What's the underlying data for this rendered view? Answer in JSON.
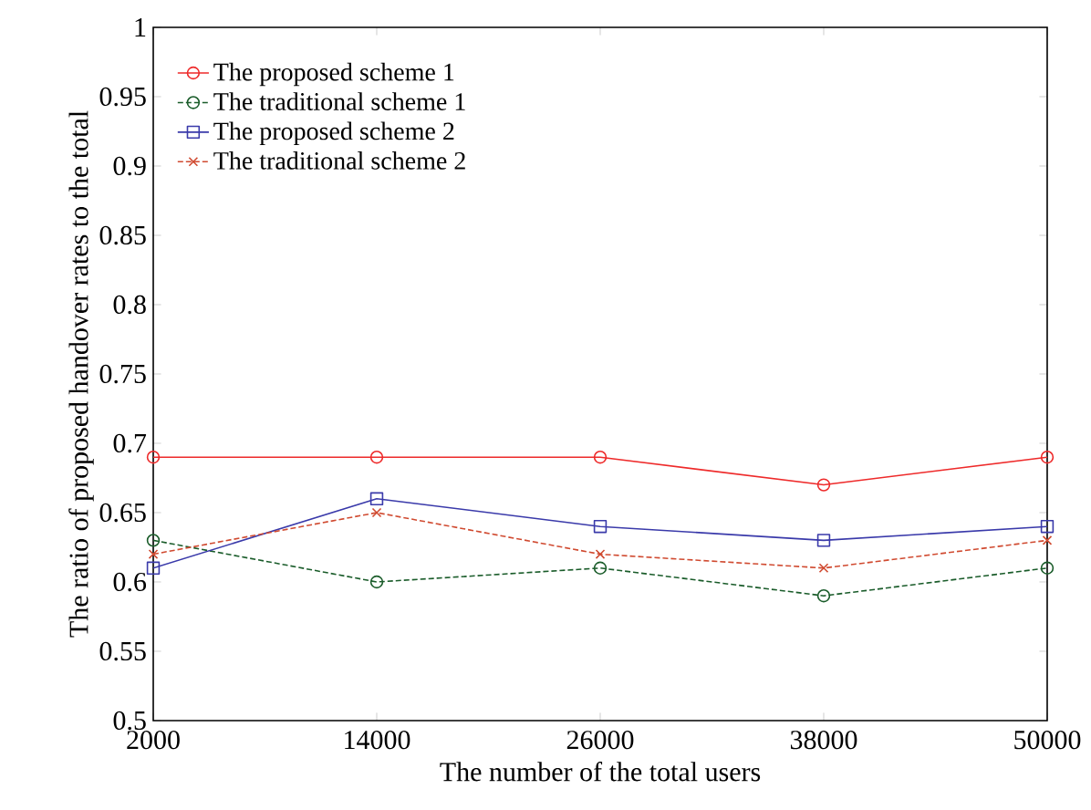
{
  "chart_data": {
    "type": "line",
    "xlabel": "The number of the total users",
    "ylabel": "The ratio of proposed handover rates to the total",
    "x": [
      2000,
      14000,
      26000,
      38000,
      50000
    ],
    "xlim": [
      2000,
      50000
    ],
    "xticks": [
      2000,
      14000,
      26000,
      38000,
      50000
    ],
    "ylim": [
      0.5,
      1
    ],
    "yticks": [
      0.5,
      0.55,
      0.6,
      0.65,
      0.7,
      0.75,
      0.8,
      0.85,
      0.9,
      0.95,
      1
    ],
    "legend": "top left",
    "grid": false,
    "series": [
      {
        "name": "The proposed scheme 1",
        "color": "#ee2a2a",
        "marker": "circle",
        "line_style": "solid",
        "values": [
          0.69,
          0.69,
          0.69,
          0.67,
          0.69
        ]
      },
      {
        "name": "The traditional scheme 1",
        "color": "#1a5c2a",
        "marker": "circle",
        "line_style": "dashed",
        "values": [
          0.63,
          0.6,
          0.61,
          0.59,
          0.61
        ]
      },
      {
        "name": "The proposed scheme 2",
        "color": "#3a3aaa",
        "marker": "square",
        "line_style": "solid",
        "values": [
          0.61,
          0.66,
          0.64,
          0.63,
          0.64
        ]
      },
      {
        "name": "The traditional scheme 2",
        "color": "#d04a30",
        "marker": "cross",
        "line_style": "dashed",
        "values": [
          0.62,
          0.65,
          0.62,
          0.61,
          0.63
        ]
      }
    ]
  }
}
